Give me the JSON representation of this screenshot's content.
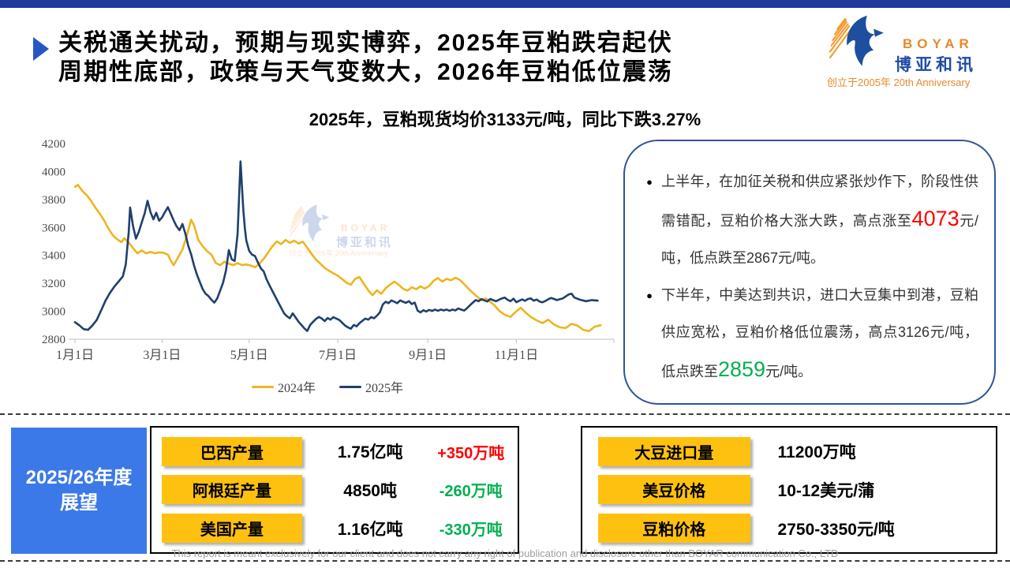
{
  "header": {
    "title_line1": "关税通关扰动，预期与现实博弈，2025年豆粕跌宕起伏",
    "title_line2": "周期性底部，政策与天气变数大，2026年豆粕低位震荡"
  },
  "logo": {
    "name": "BOYAR",
    "cn": "博亚和讯",
    "tagline": "创立于2005年 20th Anniversary"
  },
  "chart_data": {
    "type": "line",
    "title": "2025年，豆粕现货均价3133元/吨，同比下跌3.27%",
    "ylabel": "",
    "xlabel": "",
    "ylim": [
      2800,
      4200
    ],
    "yticks": [
      2800,
      3000,
      3200,
      3400,
      3600,
      3800,
      4000,
      4200
    ],
    "xticks": [
      {
        "day": 0,
        "label": "1月1日"
      },
      {
        "day": 60,
        "label": "3月1日"
      },
      {
        "day": 120,
        "label": "5月1日"
      },
      {
        "day": 181,
        "label": "7月1日"
      },
      {
        "day": 243,
        "label": "9月1日"
      },
      {
        "day": 304,
        "label": "11月1日"
      }
    ],
    "grid": false,
    "legend_position": "bottom",
    "series": [
      {
        "name": "2024年",
        "color": "#EFB41F",
        "points": [
          [
            0,
            3890
          ],
          [
            2,
            3905
          ],
          [
            5,
            3862
          ],
          [
            8,
            3832
          ],
          [
            11,
            3792
          ],
          [
            14,
            3742
          ],
          [
            17,
            3700
          ],
          [
            20,
            3652
          ],
          [
            23,
            3592
          ],
          [
            26,
            3545
          ],
          [
            29,
            3515
          ],
          [
            32,
            3495
          ],
          [
            34,
            3522
          ],
          [
            37,
            3492
          ],
          [
            40,
            3452
          ],
          [
            43,
            3415
          ],
          [
            46,
            3435
          ],
          [
            49,
            3415
          ],
          [
            52,
            3425
          ],
          [
            55,
            3415
          ],
          [
            58,
            3422
          ],
          [
            61,
            3418
          ],
          [
            64,
            3405
          ],
          [
            66,
            3362
          ],
          [
            68,
            3330
          ],
          [
            71,
            3385
          ],
          [
            74,
            3442
          ],
          [
            77,
            3540
          ],
          [
            80,
            3655
          ],
          [
            82,
            3615
          ],
          [
            85,
            3510
          ],
          [
            88,
            3465
          ],
          [
            91,
            3430
          ],
          [
            94,
            3405
          ],
          [
            97,
            3345
          ],
          [
            100,
            3330
          ],
          [
            103,
            3355
          ],
          [
            106,
            3340
          ],
          [
            109,
            3330
          ],
          [
            112,
            3345
          ],
          [
            115,
            3330
          ],
          [
            118,
            3335
          ],
          [
            121,
            3328
          ],
          [
            124,
            3315
          ],
          [
            127,
            3340
          ],
          [
            130,
            3375
          ],
          [
            133,
            3420
          ],
          [
            136,
            3465
          ],
          [
            139,
            3500
          ],
          [
            142,
            3480
          ],
          [
            145,
            3510
          ],
          [
            148,
            3490
          ],
          [
            151,
            3505
          ],
          [
            154,
            3485
          ],
          [
            157,
            3498
          ],
          [
            160,
            3455
          ],
          [
            163,
            3410
          ],
          [
            166,
            3370
          ],
          [
            169,
            3340
          ],
          [
            172,
            3310
          ],
          [
            175,
            3290
          ],
          [
            178,
            3272
          ],
          [
            181,
            3255
          ],
          [
            184,
            3230
          ],
          [
            187,
            3205
          ],
          [
            190,
            3190
          ],
          [
            193,
            3232
          ],
          [
            196,
            3245
          ],
          [
            199,
            3195
          ],
          [
            202,
            3150
          ],
          [
            205,
            3115
          ],
          [
            208,
            3150
          ],
          [
            211,
            3125
          ],
          [
            214,
            3165
          ],
          [
            217,
            3190
          ],
          [
            220,
            3212
          ],
          [
            223,
            3190
          ],
          [
            226,
            3162
          ],
          [
            229,
            3148
          ],
          [
            232,
            3172
          ],
          [
            235,
            3158
          ],
          [
            238,
            3178
          ],
          [
            241,
            3162
          ],
          [
            244,
            3182
          ],
          [
            247,
            3218
          ],
          [
            250,
            3238
          ],
          [
            253,
            3212
          ],
          [
            256,
            3232
          ],
          [
            259,
            3222
          ],
          [
            262,
            3240
          ],
          [
            265,
            3225
          ],
          [
            268,
            3195
          ],
          [
            271,
            3162
          ],
          [
            274,
            3132
          ],
          [
            277,
            3105
          ],
          [
            280,
            3078
          ],
          [
            283,
            3092
          ],
          [
            286,
            3068
          ],
          [
            289,
            3042
          ],
          [
            292,
            3005
          ],
          [
            296,
            2975
          ],
          [
            300,
            2960
          ],
          [
            304,
            3000
          ],
          [
            307,
            3025
          ],
          [
            310,
            2995
          ],
          [
            314,
            2960
          ],
          [
            318,
            2935
          ],
          [
            322,
            2915
          ],
          [
            326,
            2940
          ],
          [
            330,
            2905
          ],
          [
            334,
            2885
          ],
          [
            338,
            2880
          ],
          [
            342,
            2910
          ],
          [
            346,
            2898
          ],
          [
            350,
            2868
          ],
          [
            354,
            2858
          ],
          [
            358,
            2890
          ],
          [
            362,
            2900
          ]
        ]
      },
      {
        "name": "2025年",
        "color": "#1F3F6E",
        "points": [
          [
            0,
            2922
          ],
          [
            3,
            2900
          ],
          [
            6,
            2872
          ],
          [
            9,
            2867
          ],
          [
            12,
            2898
          ],
          [
            15,
            2938
          ],
          [
            18,
            3005
          ],
          [
            21,
            3075
          ],
          [
            24,
            3130
          ],
          [
            27,
            3175
          ],
          [
            30,
            3212
          ],
          [
            33,
            3250
          ],
          [
            35,
            3335
          ],
          [
            37,
            3565
          ],
          [
            38,
            3742
          ],
          [
            40,
            3610
          ],
          [
            42,
            3520
          ],
          [
            44,
            3570
          ],
          [
            46,
            3635
          ],
          [
            48,
            3700
          ],
          [
            50,
            3790
          ],
          [
            52,
            3710
          ],
          [
            54,
            3658
          ],
          [
            56,
            3705
          ],
          [
            58,
            3648
          ],
          [
            60,
            3672
          ],
          [
            62,
            3710
          ],
          [
            64,
            3745
          ],
          [
            66,
            3698
          ],
          [
            68,
            3650
          ],
          [
            70,
            3608
          ],
          [
            72,
            3580
          ],
          [
            74,
            3625
          ],
          [
            76,
            3558
          ],
          [
            78,
            3470
          ],
          [
            80,
            3408
          ],
          [
            82,
            3328
          ],
          [
            84,
            3262
          ],
          [
            86,
            3210
          ],
          [
            88,
            3158
          ],
          [
            90,
            3125
          ],
          [
            92,
            3108
          ],
          [
            94,
            3082
          ],
          [
            96,
            3062
          ],
          [
            98,
            3092
          ],
          [
            100,
            3148
          ],
          [
            102,
            3205
          ],
          [
            104,
            3292
          ],
          [
            106,
            3438
          ],
          [
            108,
            3372
          ],
          [
            110,
            3360
          ],
          [
            112,
            3552
          ],
          [
            114,
            4073
          ],
          [
            116,
            3722
          ],
          [
            117,
            3595
          ],
          [
            118,
            3508
          ],
          [
            120,
            3432
          ],
          [
            122,
            3405
          ],
          [
            124,
            3395
          ],
          [
            126,
            3350
          ],
          [
            128,
            3308
          ],
          [
            130,
            3285
          ],
          [
            132,
            3228
          ],
          [
            134,
            3185
          ],
          [
            136,
            3145
          ],
          [
            138,
            3105
          ],
          [
            140,
            3065
          ],
          [
            142,
            3025
          ],
          [
            144,
            2985
          ],
          [
            146,
            2965
          ],
          [
            148,
            2950
          ],
          [
            150,
            2985
          ],
          [
            152,
            2955
          ],
          [
            154,
            2925
          ],
          [
            156,
            2902
          ],
          [
            158,
            2878
          ],
          [
            160,
            2859
          ],
          [
            162,
            2902
          ],
          [
            164,
            2925
          ],
          [
            166,
            2945
          ],
          [
            168,
            2960
          ],
          [
            170,
            2948
          ],
          [
            172,
            2930
          ],
          [
            174,
            2952
          ],
          [
            176,
            2940
          ],
          [
            178,
            2958
          ],
          [
            180,
            2948
          ],
          [
            182,
            2938
          ],
          [
            184,
            2918
          ],
          [
            186,
            2898
          ],
          [
            188,
            2885
          ],
          [
            190,
            2875
          ],
          [
            192,
            2902
          ],
          [
            194,
            2892
          ],
          [
            196,
            2915
          ],
          [
            198,
            2932
          ],
          [
            200,
            2948
          ],
          [
            202,
            2940
          ],
          [
            204,
            2958
          ],
          [
            206,
            2950
          ],
          [
            208,
            2968
          ],
          [
            210,
            2992
          ],
          [
            212,
            3048
          ],
          [
            214,
            3068
          ],
          [
            216,
            3058
          ],
          [
            218,
            3078
          ],
          [
            220,
            3068
          ],
          [
            222,
            3058
          ],
          [
            224,
            3078
          ],
          [
            226,
            3068
          ],
          [
            228,
            3060
          ],
          [
            230,
            3072
          ],
          [
            232,
            3052
          ],
          [
            234,
            3062
          ],
          [
            236,
            3005
          ],
          [
            238,
            2992
          ],
          [
            240,
            3008
          ],
          [
            242,
            2998
          ],
          [
            244,
            3010
          ],
          [
            246,
            3002
          ],
          [
            248,
            3012
          ],
          [
            250,
            3004
          ],
          [
            252,
            3012
          ],
          [
            254,
            3006
          ],
          [
            256,
            3012
          ],
          [
            258,
            3004
          ],
          [
            260,
            3012
          ],
          [
            262,
            3006
          ],
          [
            264,
            3020
          ],
          [
            266,
            3012
          ],
          [
            268,
            3005
          ],
          [
            270,
            3022
          ],
          [
            272,
            3042
          ],
          [
            274,
            3062
          ],
          [
            276,
            3080
          ],
          [
            278,
            3072
          ],
          [
            280,
            3088
          ],
          [
            282,
            3078
          ],
          [
            284,
            3070
          ],
          [
            286,
            3088
          ],
          [
            288,
            3080
          ],
          [
            290,
            3072
          ],
          [
            292,
            3082
          ],
          [
            294,
            3092
          ],
          [
            296,
            3098
          ],
          [
            298,
            3082
          ],
          [
            300,
            3072
          ],
          [
            302,
            3090
          ],
          [
            304,
            3065
          ],
          [
            306,
            3075
          ],
          [
            308,
            3085
          ],
          [
            310,
            3075
          ],
          [
            312,
            3088
          ],
          [
            314,
            3092
          ],
          [
            316,
            3076
          ],
          [
            318,
            3084
          ],
          [
            320,
            3070
          ],
          [
            322,
            3064
          ],
          [
            324,
            3074
          ],
          [
            326,
            3086
          ],
          [
            328,
            3095
          ],
          [
            330,
            3088
          ],
          [
            332,
            3080
          ],
          [
            334,
            3086
          ],
          [
            336,
            3092
          ],
          [
            340,
            3120
          ],
          [
            342,
            3126
          ],
          [
            344,
            3098
          ],
          [
            348,
            3082
          ],
          [
            352,
            3072
          ],
          [
            356,
            3080
          ],
          [
            360,
            3076
          ]
        ]
      }
    ]
  },
  "analysis_box": {
    "bullets": [
      {
        "segments": [
          {
            "t": "上半年，在加征关税和供应紧张炒作下，阶段性供需错配，豆粕价格大涨大跌，高点涨至"
          },
          {
            "t": "4073",
            "color": "#FF0000",
            "big": true
          },
          {
            "t": "元/吨，低点跌至2867元/吨。"
          }
        ]
      },
      {
        "segments": [
          {
            "t": "下半年，中美达到共识，进口大豆集中到港，豆粕供应宽松，豆粕价格低位震荡，高点3126元/吨，低点跌至"
          },
          {
            "t": "2859",
            "color": "#00B050",
            "big": true
          },
          {
            "t": "元/吨。"
          }
        ]
      }
    ]
  },
  "outlook": {
    "label_line1": "2025/26年度",
    "label_line2": "展望",
    "left_rows": [
      {
        "name": "巴西产量",
        "value": "1.75亿吨",
        "change": "+350万吨",
        "change_color": "#FF0000"
      },
      {
        "name": "阿根廷产量",
        "value": "4850吨",
        "change": "-260万吨",
        "change_color": "#00B050"
      },
      {
        "name": "美国产量",
        "value": "1.16亿吨",
        "change": "-330万吨",
        "change_color": "#00B050"
      }
    ],
    "right_rows": [
      {
        "name": "大豆进口量",
        "value": "11200万吨"
      },
      {
        "name": "美豆价格",
        "value": "10-12美元/蒲"
      },
      {
        "name": "豆粕价格",
        "value": "2750-3350元/吨"
      }
    ]
  },
  "footer": "This report is meant exclusively for our client and does not carry any right of publication and disclosure other than BOYAR communication Co., LTD"
}
